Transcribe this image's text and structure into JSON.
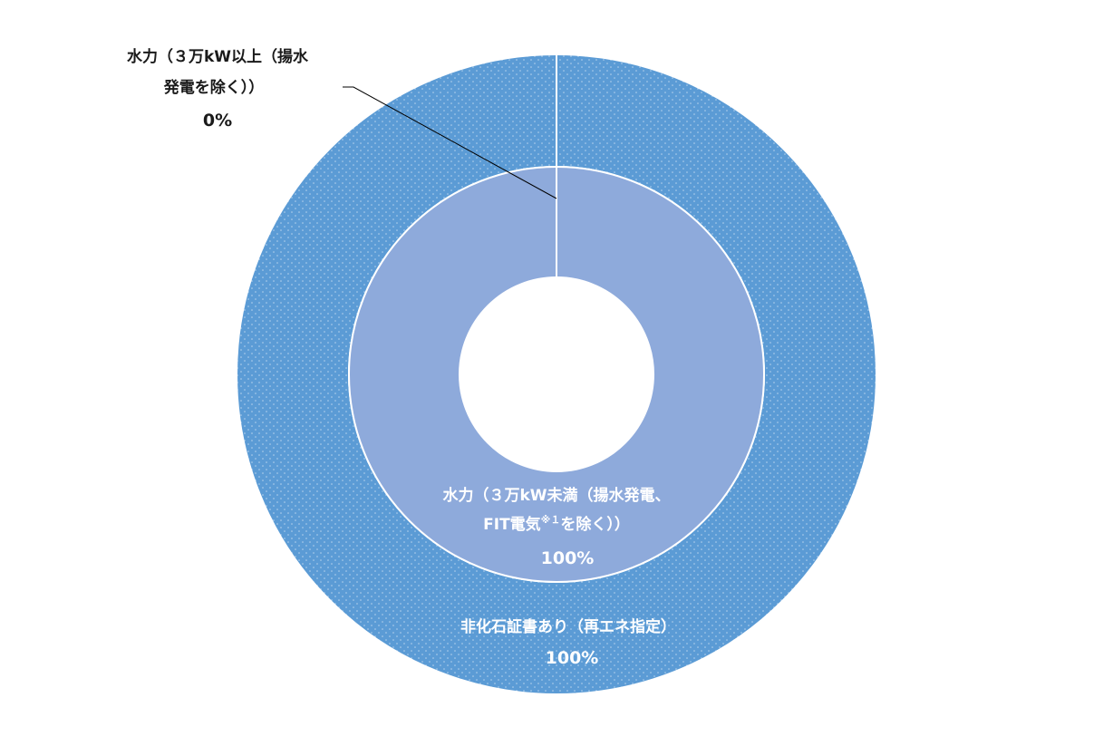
{
  "chart_data": {
    "type": "pie",
    "subtype": "double-donut",
    "colors": {
      "outer": "#5b9bd5",
      "inner": "#8eaadb",
      "separator": "#ffffff",
      "leader_line": "#000000",
      "text_on_fill": "#ffffff",
      "text_outside": "#1a1a1a",
      "dot_pattern": "#ffffff"
    },
    "rings": [
      {
        "name": "outer",
        "slices": [
          {
            "label": "非化石証書あり（再エネ指定）",
            "value": 100,
            "value_label": "100%"
          }
        ]
      },
      {
        "name": "inner",
        "slices": [
          {
            "label_line1": "水力（３万kW未満（揚水発電、",
            "label_line2_a": "FIT電気",
            "label_line2_sup": "※１",
            "label_line2_b": "を除く））",
            "value": 100,
            "value_label": "100%"
          },
          {
            "label_line1": "水力（３万kW以上（揚水",
            "label_line2": "発電を除く））",
            "value": 0,
            "value_label": "0%"
          }
        ]
      }
    ]
  }
}
